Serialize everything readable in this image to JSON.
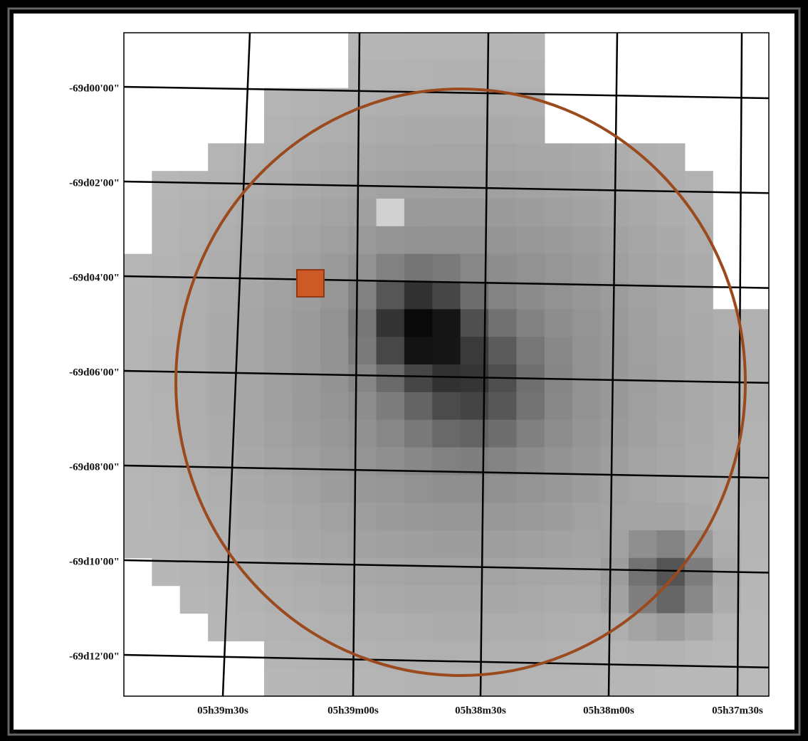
{
  "image": {
    "y_labels": [
      "-69d00'00\"",
      "-69d02'00\"",
      "-69d04'00\"",
      "-69d06'00\"",
      "-69d08'00\"",
      "-69d10'00\"",
      "-69d12'00\""
    ],
    "x_labels": [
      "05h39m30s",
      "05h39m00s",
      "05h38m30s",
      "05h38m00s",
      "05h37m30s"
    ]
  }
}
